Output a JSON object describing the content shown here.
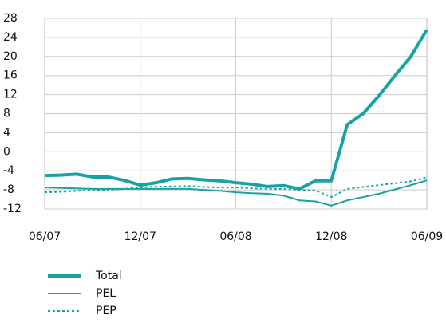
{
  "chart_data": {
    "type": "line",
    "categories": [
      "06/07",
      null,
      null,
      null,
      null,
      null,
      "12/07",
      null,
      null,
      null,
      null,
      null,
      "06/08",
      null,
      null,
      null,
      null,
      null,
      "12/08",
      null,
      null,
      null,
      null,
      null,
      "06/09"
    ],
    "series": [
      {
        "name": "Total",
        "color": "#17a3a3",
        "style": "thick",
        "values": [
          -5,
          -4.9,
          -4.7,
          -5.3,
          -5.3,
          -6,
          -7,
          -6.5,
          -5.7,
          -5.6,
          -5.9,
          -6.1,
          -6.5,
          -6.8,
          -7.3,
          -7.1,
          -7.8,
          -6.1,
          -6.1,
          5.7,
          8,
          11.8,
          16,
          20,
          25.6
        ]
      },
      {
        "name": "PEL",
        "color": "#17a3a3",
        "style": "solid",
        "values": [
          -7.5,
          -7.6,
          -7.7,
          -7.8,
          -7.8,
          -7.8,
          -7.8,
          -7.8,
          -7.8,
          -7.8,
          -8,
          -8.2,
          -8.5,
          -8.7,
          -8.8,
          -9.2,
          -10.2,
          -10.4,
          -11.3,
          -10.2,
          -9.5,
          -8.8,
          -7.9,
          -7,
          -6
        ]
      },
      {
        "name": "PEP",
        "color": "#17a3a3",
        "style": "dotted",
        "values": [
          -8.5,
          -8.4,
          -8.2,
          -8.1,
          -8,
          -7.8,
          -7.5,
          -7.3,
          -7.3,
          -7.2,
          -7.4,
          -7.5,
          -7.5,
          -7.7,
          -7.8,
          -7.8,
          -8,
          -8.1,
          -9.5,
          -7.8,
          -7.4,
          -7,
          -6.6,
          -6.2,
          -5.4
        ]
      }
    ],
    "ylim": [
      -12,
      28
    ],
    "yticks": [
      -12,
      -8,
      -4,
      0,
      4,
      8,
      12,
      16,
      20,
      24,
      28
    ],
    "grid": true
  }
}
